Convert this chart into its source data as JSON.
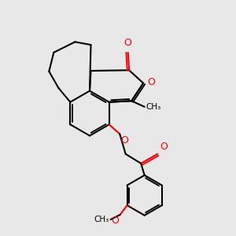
{
  "bg_color": "#e8e8e8",
  "bond_color": "#000000",
  "o_color": "#ff0000",
  "lw": 1.5,
  "dbo": 0.008,
  "figsize": [
    3.0,
    3.0
  ],
  "dpi": 100,
  "xlim": [
    0,
    1
  ],
  "ylim": [
    0,
    1
  ]
}
